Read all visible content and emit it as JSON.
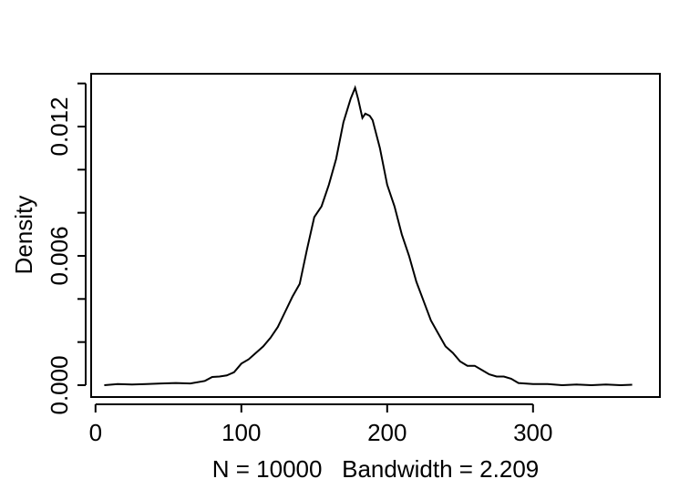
{
  "chart_data": {
    "type": "line",
    "title": "",
    "xlabel": "N = 10000   Bandwidth = 2.209",
    "ylabel": "Density",
    "xlim": [
      -3,
      387
    ],
    "ylim": [
      -0.00055,
      0.01445
    ],
    "xticks": [
      0,
      100,
      200,
      300
    ],
    "xtick_labels": [
      "0",
      "100",
      "200",
      "300"
    ],
    "yticks": [
      0.0,
      0.002,
      0.004,
      0.006,
      0.008,
      0.01,
      0.012,
      0.014
    ],
    "ytick_labels": [
      "0.000",
      "",
      "",
      "0.006",
      "",
      "",
      "0.012",
      ""
    ],
    "grid": false,
    "series": [
      {
        "x": [
          6,
          15,
          25,
          35,
          45,
          55,
          65,
          75,
          80,
          85,
          90,
          95,
          100,
          105,
          110,
          115,
          120,
          125,
          130,
          135,
          140,
          145,
          150,
          155,
          160,
          165,
          170,
          175,
          178,
          180,
          183,
          185,
          188,
          190,
          195,
          200,
          205,
          210,
          215,
          220,
          225,
          230,
          235,
          240,
          245,
          250,
          255,
          260,
          265,
          270,
          275,
          280,
          285,
          290,
          300,
          310,
          320,
          330,
          340,
          350,
          360,
          368
        ],
        "y": [
          0.0,
          5e-05,
          3e-05,
          5e-05,
          8e-05,
          0.0001,
          8e-05,
          0.0002,
          0.00038,
          0.0004,
          0.00045,
          0.0006,
          0.001,
          0.0012,
          0.0015,
          0.0018,
          0.0022,
          0.0027,
          0.0034,
          0.0041,
          0.0047,
          0.0063,
          0.0078,
          0.0083,
          0.0093,
          0.0105,
          0.0122,
          0.0133,
          0.0138,
          0.0133,
          0.0124,
          0.0126,
          0.0125,
          0.0123,
          0.011,
          0.0093,
          0.0083,
          0.007,
          0.006,
          0.0048,
          0.0039,
          0.003,
          0.0024,
          0.0018,
          0.0015,
          0.0011,
          0.0009,
          0.0009,
          0.0007,
          0.0005,
          0.0004,
          0.0004,
          0.0003,
          0.0001,
          5e-05,
          5e-05,
          0.0,
          3e-05,
          0.0,
          3e-05,
          0.0,
          2e-05
        ]
      }
    ]
  }
}
